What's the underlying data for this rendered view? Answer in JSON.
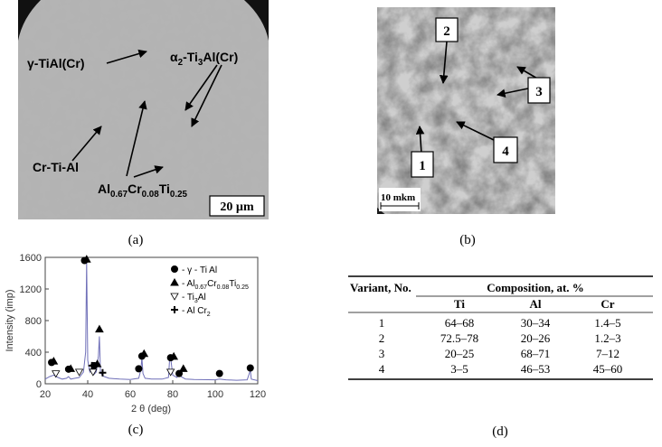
{
  "panels": {
    "a": {
      "caption": "(a)",
      "labels": [
        [
          "γ-TiAl(Cr)"
        ],
        [
          "α",
          "2",
          "-Ti",
          "3",
          "Al(Cr)"
        ],
        [
          "Cr-Ti-Al"
        ],
        [
          "Al",
          "0.67",
          "Cr",
          "0.08",
          "Ti",
          "0.25"
        ]
      ],
      "scale_bar": "20 µm"
    },
    "b": {
      "caption": "(b)",
      "labels": [
        "1",
        "2",
        "3",
        "4"
      ],
      "scale_bar": "10 mkm"
    },
    "c": {
      "caption": "(c)",
      "chart_data": {
        "type": "line",
        "x_label": "2 θ (deg)",
        "y_label": "Intensity (imp)",
        "xlim": [
          20,
          120
        ],
        "xticks": [
          20,
          40,
          60,
          80,
          100,
          120
        ],
        "ylim": [
          0,
          1600
        ],
        "yticks": [
          0,
          400,
          800,
          1200,
          1600
        ],
        "color": "#6f6fb8",
        "x": [
          20,
          22,
          24,
          26,
          28,
          30,
          31,
          32,
          34,
          36,
          38,
          39,
          39.5,
          40,
          41,
          42,
          43,
          44,
          45,
          45.5,
          46,
          47,
          50,
          55,
          60,
          64,
          65,
          65.5,
          66,
          67,
          70,
          75,
          78,
          78.5,
          79,
          80,
          82,
          83,
          84,
          86,
          90,
          100,
          102,
          105,
          110,
          115,
          116.5,
          117,
          120
        ],
        "values": [
          60,
          90,
          110,
          80,
          60,
          70,
          90,
          60,
          70,
          80,
          150,
          400,
          1550,
          300,
          150,
          220,
          120,
          150,
          350,
          600,
          150,
          100,
          70,
          60,
          55,
          70,
          180,
          330,
          130,
          70,
          60,
          60,
          80,
          300,
          330,
          110,
          80,
          150,
          90,
          60,
          55,
          50,
          60,
          50,
          45,
          50,
          170,
          60,
          40
        ],
        "series": [
          {
            "name": [
              "- γ - Ti Al"
            ],
            "symbol": "circle",
            "x": [
              23,
              31,
              38.5,
              43,
              64,
              65.5,
              79,
              83,
              102,
              116.5
            ],
            "values": [
              270,
              185,
              1560,
              230,
              190,
              350,
              330,
              130,
              130,
              200
            ]
          },
          {
            "name": [
              "- Al",
              "0.67",
              "Cr",
              "0.08",
              "Ti",
              "0.25"
            ],
            "symbol": "triangle",
            "x": [
              24,
              32,
              39.5,
              44.5,
              45.5,
              66.5,
              80.5,
              85
            ],
            "values": [
              285,
              190,
              1575,
              250,
              690,
              380,
              345,
              190
            ]
          },
          {
            "name": [
              "- Ti",
              "3",
              "Al"
            ],
            "symbol": "triangle-down",
            "x": [
              25,
              36,
              42.5,
              79
            ],
            "values": [
              130,
              150,
              150,
              150
            ]
          },
          {
            "name": [
              "- Al Cr",
              "2"
            ],
            "symbol": "plus",
            "x": [
              42,
              47
            ],
            "values": [
              230,
              140
            ]
          }
        ]
      }
    },
    "d": {
      "caption": "(d)",
      "table": {
        "header": [
          "Variant, No.",
          "Composition, at. %"
        ],
        "subheader": [
          "Ti",
          "Al",
          "Cr"
        ],
        "rows": [
          [
            "1",
            "64–68",
            "30–34",
            "1.4–5"
          ],
          [
            "2",
            "72.5–78",
            "20–26",
            "1.2–3"
          ],
          [
            "3",
            "20–25",
            "68–71",
            "7–12"
          ],
          [
            "4",
            "3–5",
            "46–53",
            "45–60"
          ]
        ]
      }
    }
  }
}
